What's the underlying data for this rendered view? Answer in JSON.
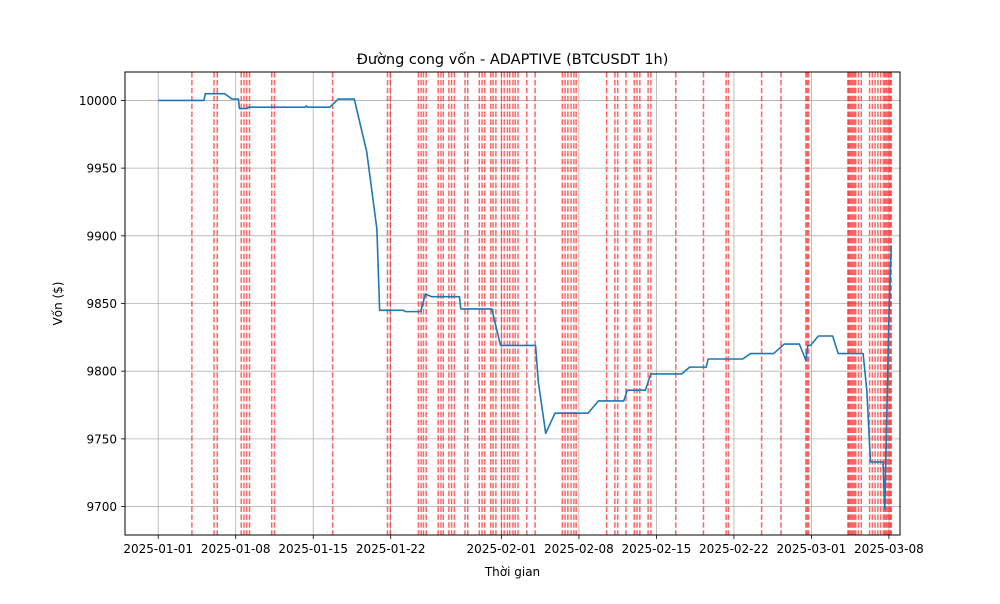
{
  "chart_data": {
    "type": "line",
    "title": "Đường cong vốn - ADAPTIVE (BTCUSDT 1h)",
    "xlabel": "Thời gian",
    "ylabel": "Vốn ($)",
    "xlim": [
      "2024-12-29",
      "2025-03-09"
    ],
    "ylim": [
      9679,
      10021
    ],
    "x_ticks": [
      "2025-01-01",
      "2025-01-08",
      "2025-01-15",
      "2025-01-22",
      "2025-02-01",
      "2025-02-08",
      "2025-02-15",
      "2025-02-22",
      "2025-03-01",
      "2025-03-08"
    ],
    "x_tick_dates": [
      "2025-01-01",
      "2025-01-08",
      "2025-01-15",
      "2025-01-22",
      "2025-02-01",
      "2025-02-08",
      "2025-02-15",
      "2025-02-22",
      "2025-03-01",
      "2025-03-08"
    ],
    "y_ticks": [
      9700,
      9750,
      9800,
      9850,
      9900,
      9950,
      10000
    ],
    "grid": true,
    "colors": {
      "equity": "#1f77b4",
      "trade_marker": "#ff0000",
      "grid": "#b0b0b0"
    },
    "series": [
      {
        "points": [
          [
            "2025-01-01 00:00",
            10000
          ],
          [
            "2025-01-05 03:00",
            10000
          ],
          [
            "2025-01-05 06:00",
            10005
          ],
          [
            "2025-01-07 00:00",
            10005
          ],
          [
            "2025-01-07 16:00",
            10001
          ],
          [
            "2025-01-08 06:00",
            10001
          ],
          [
            "2025-01-08 08:00",
            9994
          ],
          [
            "2025-01-09 00:00",
            9994
          ],
          [
            "2025-01-09 04:00",
            9995
          ],
          [
            "2025-01-14 07:00",
            9995
          ],
          [
            "2025-01-14 09:00",
            9996
          ],
          [
            "2025-01-14 12:00",
            9995
          ],
          [
            "2025-01-16 12:00",
            9995
          ],
          [
            "2025-01-17 06:00",
            10001
          ],
          [
            "2025-01-18 17:00",
            10001
          ],
          [
            "2025-01-19 20:00",
            9962
          ],
          [
            "2025-01-20 18:00",
            9905
          ],
          [
            "2025-01-21 00:00",
            9845
          ],
          [
            "2025-01-23 03:00",
            9845
          ],
          [
            "2025-01-23 08:00",
            9844
          ],
          [
            "2025-01-24 17:00",
            9844
          ],
          [
            "2025-01-25 03:00",
            9857
          ],
          [
            "2025-01-25 17:00",
            9855
          ],
          [
            "2025-01-28 05:00",
            9855
          ],
          [
            "2025-01-28 08:00",
            9846
          ],
          [
            "2025-01-31 03:00",
            9846
          ],
          [
            "2025-01-31 22:00",
            9819
          ],
          [
            "2025-02-04 02:00",
            9819
          ],
          [
            "2025-02-04 08:00",
            9792
          ],
          [
            "2025-02-05 00:00",
            9754
          ],
          [
            "2025-02-05 20:00",
            9769
          ],
          [
            "2025-02-08 20:00",
            9769
          ],
          [
            "2025-02-09 18:00",
            9778
          ],
          [
            "2025-02-12 01:00",
            9778
          ],
          [
            "2025-02-12 09:00",
            9786
          ],
          [
            "2025-02-14 00:00",
            9786
          ],
          [
            "2025-02-14 12:00",
            9798
          ],
          [
            "2025-02-17 07:00",
            9798
          ],
          [
            "2025-02-18 00:00",
            9803
          ],
          [
            "2025-02-19 12:00",
            9803
          ],
          [
            "2025-02-19 16:00",
            9809
          ],
          [
            "2025-02-22 19:00",
            9809
          ],
          [
            "2025-02-23 12:00",
            9813
          ],
          [
            "2025-02-25 14:00",
            9813
          ],
          [
            "2025-02-26 13:00",
            9820
          ],
          [
            "2025-02-27 22:00",
            9820
          ],
          [
            "2025-02-28 12:00",
            9808
          ],
          [
            "2025-02-28 16:00",
            9819
          ],
          [
            "2025-02-28 22:00",
            9819
          ],
          [
            "2025-03-01 15:00",
            9826
          ],
          [
            "2025-03-02 22:00",
            9826
          ],
          [
            "2025-03-03 10:00",
            9813
          ],
          [
            "2025-03-05 16:00",
            9813
          ],
          [
            "2025-03-06 00:00",
            9786
          ],
          [
            "2025-03-06 08:00",
            9733
          ],
          [
            "2025-03-07 11:00",
            9733
          ],
          [
            "2025-03-07 15:00",
            9698
          ],
          [
            "2025-03-08 00:00",
            9840
          ],
          [
            "2025-03-08 05:00",
            9893
          ]
        ]
      }
    ],
    "trade_markers": [
      "2025-01-04 01:00",
      "2025-01-06 01:00",
      "2025-01-06 08:00",
      "2025-01-08 12:00",
      "2025-01-08 18:00",
      "2025-01-09 00:00",
      "2025-01-09 06:00",
      "2025-01-11 06:00",
      "2025-01-11 12:00",
      "2025-01-16 18:00",
      "2025-01-21 17:00",
      "2025-01-21 23:00",
      "2025-01-24 12:00",
      "2025-01-24 18:00",
      "2025-01-24 23:00",
      "2025-01-25 05:00",
      "2025-01-26 07:00",
      "2025-01-26 13:00",
      "2025-01-26 18:00",
      "2025-01-27 06:00",
      "2025-01-27 12:00",
      "2025-01-27 18:00",
      "2025-01-28 17:00",
      "2025-01-28 23:00",
      "2025-01-30 00:00",
      "2025-01-30 06:00",
      "2025-01-30 12:00",
      "2025-01-31 01:00",
      "2025-01-31 06:00",
      "2025-01-31 12:00",
      "2025-02-01 00:00",
      "2025-02-01 06:00",
      "2025-02-01 13:00",
      "2025-02-01 18:00",
      "2025-02-02 01:00",
      "2025-02-02 06:00",
      "2025-02-02 12:00",
      "2025-02-03 07:00",
      "2025-02-04 01:00",
      "2025-02-06 12:00",
      "2025-02-06 18:00",
      "2025-02-07 00:00",
      "2025-02-07 07:00",
      "2025-02-07 13:00",
      "2025-02-07 18:00",
      "2025-02-10 12:00",
      "2025-02-11 06:00",
      "2025-02-11 12:00",
      "2025-02-12 06:00",
      "2025-02-13 00:00",
      "2025-02-13 06:00",
      "2025-02-13 12:00",
      "2025-02-14 06:00",
      "2025-02-14 12:00",
      "2025-02-16 18:00",
      "2025-02-19 06:00",
      "2025-02-21 07:00",
      "2025-02-21 12:00",
      "2025-02-24 12:00",
      "2025-02-26 06:00",
      "2025-02-28 12:00",
      "2025-02-28 15:00",
      "2025-02-28 18:00",
      "2025-03-04 07:00",
      "2025-03-04 09:00",
      "2025-03-04 12:00",
      "2025-03-04 15:00",
      "2025-03-04 18:00",
      "2025-03-04 21:00",
      "2025-03-05 00:00",
      "2025-03-05 06:00",
      "2025-03-05 12:00",
      "2025-03-06 06:00",
      "2025-03-06 12:00",
      "2025-03-06 18:00",
      "2025-03-07 00:00",
      "2025-03-07 06:00",
      "2025-03-07 12:00",
      "2025-03-07 15:00",
      "2025-03-07 18:00",
      "2025-03-07 21:00",
      "2025-03-08 00:00",
      "2025-03-08 03:00",
      "2025-03-08 05:00"
    ]
  }
}
